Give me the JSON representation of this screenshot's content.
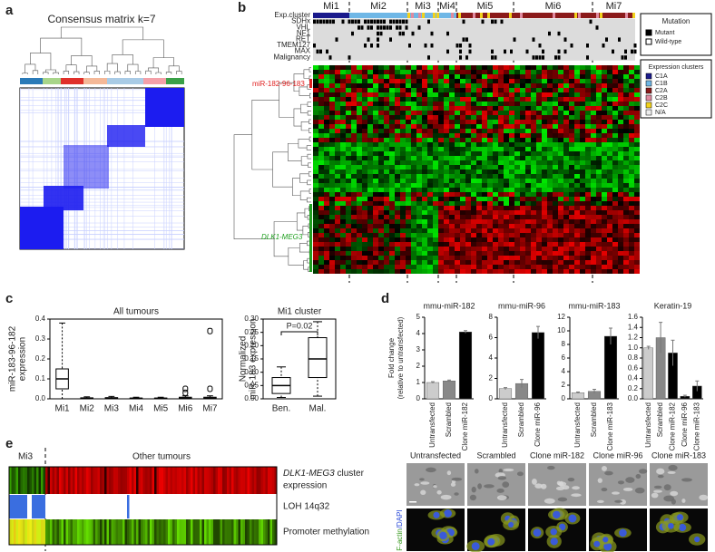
{
  "panels": {
    "a": {
      "label": "a",
      "title": "Consensus matrix k=7"
    },
    "b": {
      "label": "b",
      "clusters": [
        "Mi1",
        "Mi2",
        "Mi3",
        "Mi4",
        "Mi5",
        "Mi6",
        "Mi7"
      ],
      "row_labels": [
        "Exp.cluster",
        "SDHx",
        "VHL",
        "NF1",
        "RET",
        "TMEM127",
        "MAX",
        "Malignancy"
      ],
      "mir_label": "miR-182-96-183",
      "dlk_label": "DLK1-MEG3",
      "mutation_legend": {
        "title": "Mutation",
        "items": [
          {
            "name": "Mutant",
            "color": "#000000"
          },
          {
            "name": "Wild-type",
            "color": "#ffffff"
          }
        ]
      },
      "expression_legend": {
        "title": "Expression clusters",
        "items": [
          {
            "name": "C1A",
            "color": "#1a1a8c"
          },
          {
            "name": "C1B",
            "color": "#6fb7e6"
          },
          {
            "name": "C2A",
            "color": "#8b1a1a"
          },
          {
            "name": "C2B",
            "color": "#e08aa0"
          },
          {
            "name": "C2C",
            "color": "#f2d21c"
          },
          {
            "name": "N/A",
            "color": "#eeeeee"
          }
        ]
      }
    },
    "c": {
      "label": "c",
      "all": {
        "type": "box",
        "title": "All tumours",
        "ylabel": [
          "miR-183-96-182",
          "expression"
        ],
        "categories": [
          "Mi1",
          "Mi2",
          "Mi3",
          "Mi4",
          "Mi5",
          "Mi6",
          "Mi7"
        ],
        "boxes": [
          {
            "low": 0,
            "q1": 0.05,
            "median": 0.1,
            "q3": 0.15,
            "high": 0.38
          },
          {
            "low": 0,
            "q1": 0,
            "median": 0.002,
            "q3": 0.005,
            "high": 0.01
          },
          {
            "low": 0,
            "q1": 0,
            "median": 0.003,
            "q3": 0.006,
            "high": 0.012
          },
          {
            "low": 0,
            "q1": 0,
            "median": 0.002,
            "q3": 0.004,
            "high": 0.008
          },
          {
            "low": 0,
            "q1": 0,
            "median": 0.002,
            "q3": 0.004,
            "high": 0.008
          },
          {
            "low": 0,
            "q1": 0,
            "median": 0.003,
            "q3": 0.008,
            "high": 0.015,
            "outliers": [
              0.03,
              0.05
            ]
          },
          {
            "low": 0,
            "q1": 0,
            "median": 0.003,
            "q3": 0.008,
            "high": 0.015,
            "outliers": [
              0.05,
              0.34
            ]
          }
        ],
        "ylim": [
          0,
          0.4
        ],
        "yticks": [
          {
            "value": 0,
            "label": "0.0"
          },
          {
            "value": 0.1,
            "label": "0.1"
          },
          {
            "value": 0.2,
            "label": "0.2"
          },
          {
            "value": 0.3,
            "label": "0.3"
          },
          {
            "value": 0.4,
            "label": "0.4"
          }
        ]
      },
      "mi1": {
        "type": "box",
        "title": "Mi1 cluster",
        "ylabel": [
          "Normalized",
          "miR-183 expression"
        ],
        "categories": [
          "Ben.",
          "Mal."
        ],
        "boxes": [
          {
            "low": 0.005,
            "q1": 0.02,
            "median": 0.05,
            "q3": 0.08,
            "high": 0.12
          },
          {
            "low": 0.01,
            "q1": 0.08,
            "median": 0.15,
            "q3": 0.23,
            "high": 0.29
          }
        ],
        "annotation": "P=0.02",
        "ylim": [
          0,
          0.3
        ],
        "yticks": [
          {
            "value": 0,
            "label": "0.00"
          },
          {
            "value": 0.05,
            "label": "0.05"
          },
          {
            "value": 0.1,
            "label": "0.10"
          },
          {
            "value": 0.15,
            "label": "0.15"
          },
          {
            "value": 0.2,
            "label": "0.20"
          },
          {
            "value": 0.25,
            "label": "0.25"
          },
          {
            "value": 0.3,
            "label": "0.30"
          }
        ]
      }
    },
    "d": {
      "label": "d",
      "ylabel": [
        "Fold change",
        "(relative to untransfected)"
      ],
      "charts": [
        {
          "type": "bar",
          "title": "mmu-miR-182",
          "categories": [
            "Untransfected",
            "Scrambled",
            "Clone miR-182"
          ],
          "values": [
            1.0,
            1.1,
            4.1
          ],
          "errors": [
            0.05,
            0.05,
            0.08
          ],
          "colors": [
            "#cccccc",
            "#888888",
            "#000000"
          ],
          "ylim": [
            0,
            5
          ],
          "yticks": [
            0,
            1,
            2,
            3,
            4,
            5
          ]
        },
        {
          "type": "bar",
          "title": "mmu-miR-96",
          "categories": [
            "Untransfected",
            "Scrambled",
            "Clone miR-96"
          ],
          "values": [
            1.0,
            1.5,
            6.5
          ],
          "errors": [
            0.1,
            0.4,
            0.6
          ],
          "colors": [
            "#cccccc",
            "#888888",
            "#000000"
          ],
          "ylim": [
            0,
            8
          ],
          "yticks": [
            0,
            2,
            4,
            6,
            8
          ]
        },
        {
          "type": "bar",
          "title": "mmu-miR-183",
          "categories": [
            "Untransfected",
            "Scrambled",
            "Clone miR-183"
          ],
          "values": [
            0.9,
            1.1,
            9.2
          ],
          "errors": [
            0.1,
            0.3,
            1.2
          ],
          "colors": [
            "#cccccc",
            "#888888",
            "#000000"
          ],
          "ylim": [
            0,
            12
          ],
          "yticks": [
            0,
            2,
            4,
            6,
            8,
            10,
            12
          ]
        },
        {
          "type": "bar",
          "title": "Keratin-19",
          "categories": [
            "Untransfected",
            "Scrambled",
            "Clone miR-182",
            "Clone miR-96",
            "Clone miR-183"
          ],
          "values": [
            1.0,
            1.2,
            0.9,
            0.05,
            0.25
          ],
          "errors": [
            0.03,
            0.3,
            0.25,
            0.02,
            0.1
          ],
          "colors": [
            "#cccccc",
            "#888888",
            "#000000",
            "#000000",
            "#000000"
          ],
          "ylim": [
            0,
            1.6
          ],
          "yticks": [
            {
              "value": 0,
              "label": "0.0"
            },
            {
              "value": 0.2,
              "label": "0.2"
            },
            {
              "value": 0.4,
              "label": "0.4"
            },
            {
              "value": 0.6,
              "label": "0.6"
            },
            {
              "value": 0.8,
              "label": "0.8"
            },
            {
              "value": 1.0,
              "label": "1.0"
            },
            {
              "value": 1.2,
              "label": "1.2"
            },
            {
              "value": 1.4,
              "label": "1.4"
            },
            {
              "value": 1.6,
              "label": "1.6"
            }
          ]
        }
      ]
    },
    "e": {
      "label": "e",
      "left_group": "Mi3",
      "right_group": "Other tumours",
      "row_labels": [
        [
          "DLK1-MEG3",
          " cluster",
          "expression"
        ],
        [
          "LOH 14q32"
        ],
        [
          "Promoter methylation"
        ]
      ],
      "image_columns": [
        "Untransfected",
        "Scrambled",
        "Clone miR-182",
        "Clone miR-96",
        "Clone miR-183"
      ],
      "stain_label": [
        "F-actin",
        "/DAPI"
      ]
    }
  }
}
